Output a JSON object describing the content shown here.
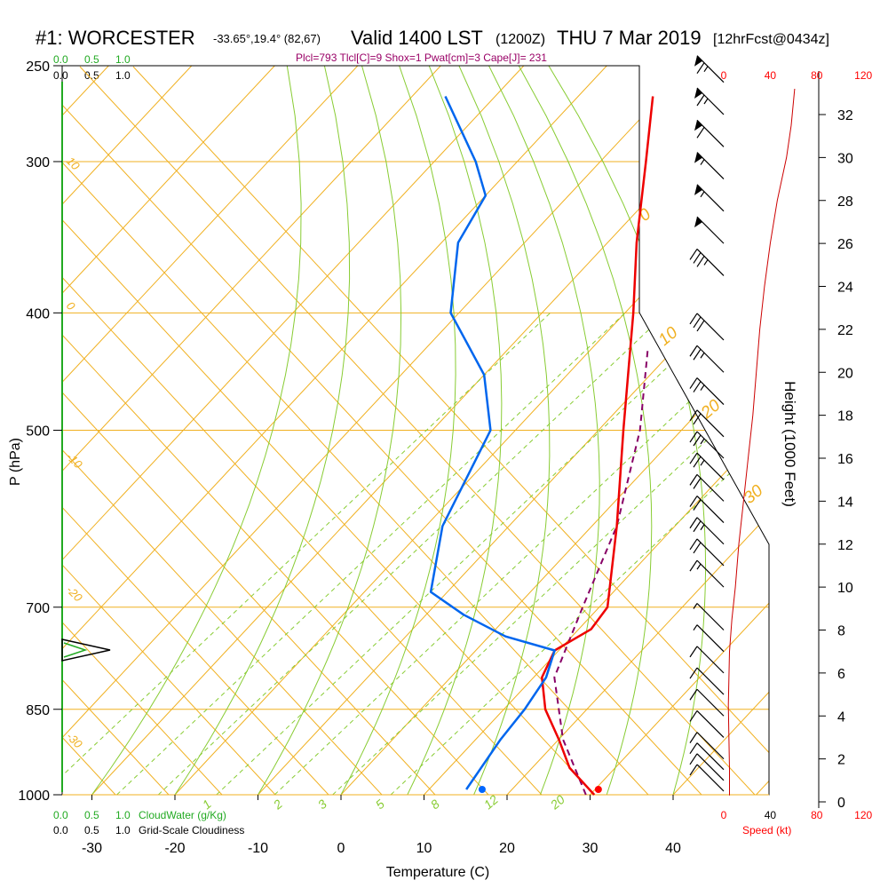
{
  "title": {
    "station": "#1: WORCESTER",
    "location": "-33.65°,19.4° (82,67)",
    "valid": "Valid 1400 LST",
    "zulu": "(1200Z)",
    "date": "THU 7 Mar 2019",
    "forecast": "[12hrFcst@0434z]"
  },
  "indices": "Plcl=793 Tlcl[C]=9 Shox=1 Pwat[cm]=3 Cape[J]= 231",
  "legends": {
    "cloudwater_top": [
      "0.0",
      "0.5",
      "1.0"
    ],
    "cloudiness_top": [
      "0.0",
      "0.5",
      "1.0"
    ],
    "cloudwater_bottom": [
      "0.0",
      "0.5",
      "1.0"
    ],
    "cloudwater_label": "CloudWater (g/Kg)",
    "cloudiness_bottom": [
      "0.0",
      "0.5",
      "1.0"
    ],
    "cloudiness_label": "Grid-Scale Cloudiness",
    "speed_label": "Speed (kt)"
  },
  "colors": {
    "temperature": "#ee0000",
    "dewpoint": "#0066ee",
    "parcel": "#880066",
    "isobar_isotherm": "#f0b020",
    "dry_adiabat": "#f0b020",
    "moist_adiabat": "#88cc33",
    "mixing_ratio": "#88cc33",
    "wind_speed": "#cc0000"
  },
  "chart_data": {
    "type": "skew-t",
    "xlabel": "Temperature (C)",
    "ylabel": "P (hPa)",
    "right_ylabel": "Height (1000 Feet)",
    "xlim": [
      -33,
      33
    ],
    "ylim_pressure": [
      1000,
      250
    ],
    "x_ticks": [
      -30,
      -20,
      -10,
      0,
      10,
      20,
      30,
      40
    ],
    "pressure_ticks": [
      1000,
      850,
      700,
      500,
      400,
      300,
      250
    ],
    "height_ticks": [
      0,
      2,
      4,
      6,
      8,
      10,
      12,
      14,
      16,
      18,
      20,
      22,
      24,
      26,
      28,
      30,
      32
    ],
    "speed_ticks": [
      "0",
      "40",
      "80",
      "120"
    ],
    "mixing_ratio_labels": [
      "1",
      "2",
      "3",
      "5",
      "8",
      "12",
      "20"
    ],
    "dry_adiabat_labels_left": [
      "10",
      "0",
      "-10",
      "-20",
      "-30"
    ],
    "moist_adiabat_labels_right": [
      "0",
      "10",
      "20",
      "30"
    ],
    "temperature": [
      {
        "p": 1000,
        "t": 30.5
      },
      {
        "p": 950,
        "t": 24.5
      },
      {
        "p": 900,
        "t": 20.0
      },
      {
        "p": 850,
        "t": 15.0
      },
      {
        "p": 800,
        "t": 11.0
      },
      {
        "p": 760,
        "t": 9.5
      },
      {
        "p": 730,
        "t": 11.5
      },
      {
        "p": 700,
        "t": 11.0
      },
      {
        "p": 600,
        "t": 3.0
      },
      {
        "p": 500,
        "t": -7.0
      },
      {
        "p": 400,
        "t": -19.0
      },
      {
        "p": 350,
        "t": -26.5
      },
      {
        "p": 300,
        "t": -34.5
      },
      {
        "p": 265,
        "t": -41.0
      }
    ],
    "dewpoint": [
      {
        "p": 990,
        "t": 14.5
      },
      {
        "p": 900,
        "t": 13.0
      },
      {
        "p": 850,
        "t": 12.5
      },
      {
        "p": 800,
        "t": 11.5
      },
      {
        "p": 760,
        "t": 9.5
      },
      {
        "p": 740,
        "t": 2.0
      },
      {
        "p": 710,
        "t": -5.5
      },
      {
        "p": 680,
        "t": -12.0
      },
      {
        "p": 600,
        "t": -18.0
      },
      {
        "p": 500,
        "t": -23.0
      },
      {
        "p": 450,
        "t": -30.0
      },
      {
        "p": 400,
        "t": -41.0
      },
      {
        "p": 350,
        "t": -48.0
      },
      {
        "p": 320,
        "t": -50.0
      },
      {
        "p": 300,
        "t": -55.0
      },
      {
        "p": 265,
        "t": -66.0
      }
    ],
    "parcel": [
      {
        "p": 1000,
        "t": 29.5
      },
      {
        "p": 900,
        "t": 20.5
      },
      {
        "p": 800,
        "t": 12.5
      },
      {
        "p": 700,
        "t": 8.0
      },
      {
        "p": 600,
        "t": 3.0
      },
      {
        "p": 500,
        "t": -5.0
      },
      {
        "p": 430,
        "t": -13.0
      }
    ],
    "surface_temperature": 31,
    "surface_dewpoint": 17,
    "wind_speed_profile": [
      {
        "h": 0.3,
        "s": 5
      },
      {
        "h": 1.5,
        "s": 5
      },
      {
        "h": 4.5,
        "s": 4
      },
      {
        "h": 7.0,
        "s": 5
      },
      {
        "h": 8.5,
        "s": 7
      },
      {
        "h": 10.0,
        "s": 10
      },
      {
        "h": 12.0,
        "s": 13
      },
      {
        "h": 14.0,
        "s": 17
      },
      {
        "h": 16.0,
        "s": 21
      },
      {
        "h": 18.0,
        "s": 25
      },
      {
        "h": 20.0,
        "s": 28
      },
      {
        "h": 22.0,
        "s": 31
      },
      {
        "h": 24.0,
        "s": 35
      },
      {
        "h": 26.0,
        "s": 40
      },
      {
        "h": 28.0,
        "s": 46
      },
      {
        "h": 30.0,
        "s": 54
      },
      {
        "h": 31.5,
        "s": 58
      },
      {
        "h": 33.2,
        "s": 61
      }
    ],
    "wind_barbs": [
      {
        "h": 0.5,
        "speed": 10
      },
      {
        "h": 1.0,
        "speed": 10
      },
      {
        "h": 1.5,
        "speed": 10
      },
      {
        "h": 2.0,
        "speed": 10
      },
      {
        "h": 3.0,
        "speed": 10
      },
      {
        "h": 4.0,
        "speed": 10
      },
      {
        "h": 5.0,
        "speed": 10
      },
      {
        "h": 6.0,
        "speed": 10
      },
      {
        "h": 7.0,
        "speed": 5
      },
      {
        "h": 8.0,
        "speed": 5
      },
      {
        "h": 10.0,
        "speed": 15
      },
      {
        "h": 11.0,
        "speed": 20
      },
      {
        "h": 12.0,
        "speed": 25
      },
      {
        "h": 13.0,
        "speed": 20
      },
      {
        "h": 14.0,
        "speed": 20
      },
      {
        "h": 15.0,
        "speed": 25
      },
      {
        "h": 16.0,
        "speed": 25
      },
      {
        "h": 17.0,
        "speed": 20
      },
      {
        "h": 18.5,
        "speed": 25
      },
      {
        "h": 20.0,
        "speed": 25
      },
      {
        "h": 21.5,
        "speed": 30
      },
      {
        "h": 24.5,
        "speed": 35
      },
      {
        "h": 26.0,
        "speed": 50
      },
      {
        "h": 27.5,
        "speed": 55
      },
      {
        "h": 29.0,
        "speed": 55
      },
      {
        "h": 30.5,
        "speed": 60
      },
      {
        "h": 32.0,
        "speed": 65
      },
      {
        "h": 33.5,
        "speed": 65
      }
    ],
    "grid": true
  }
}
